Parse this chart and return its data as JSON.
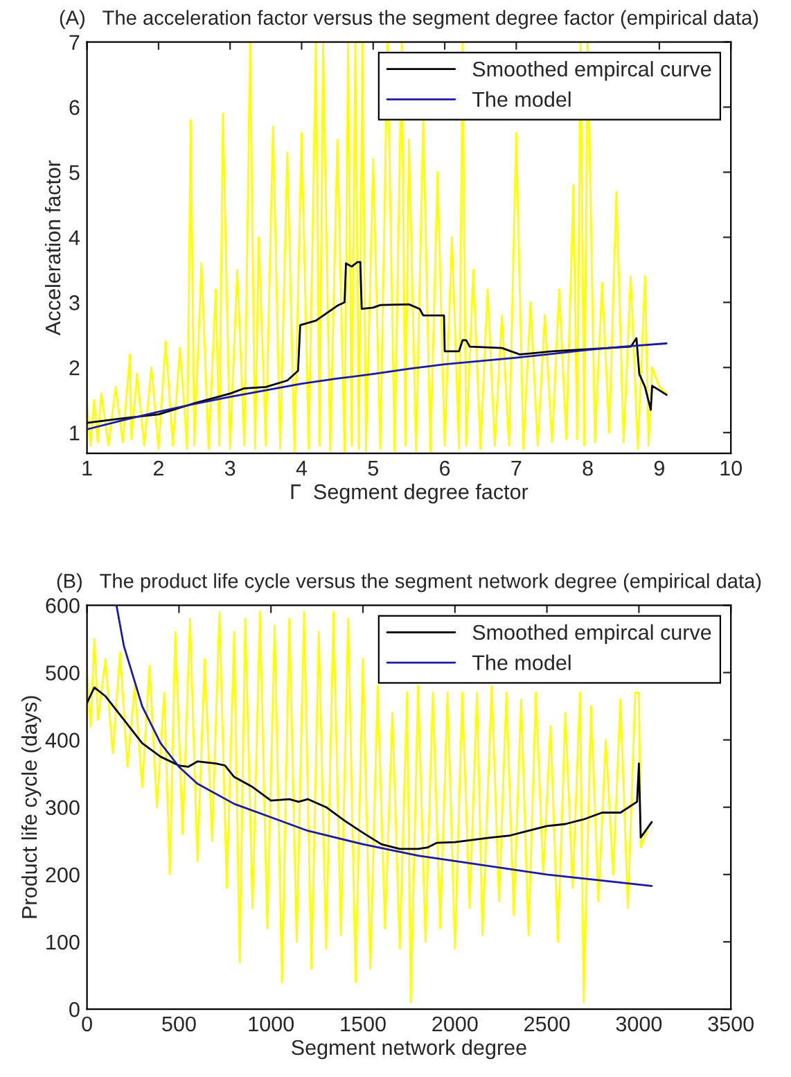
{
  "chart_data": [
    {
      "type": "line",
      "title": "(A)   The acceleration factor versus the segment degree factor (empirical data)",
      "xlabel": "Γ  Segment degree factor",
      "ylabel": "Acceleration factor",
      "xlim": [
        1,
        10
      ],
      "ylim": [
        0.68,
        7
      ],
      "xticks": [
        1,
        2,
        3,
        4,
        5,
        6,
        7,
        8,
        9,
        10
      ],
      "yticks": [
        1,
        2,
        3,
        4,
        5,
        6,
        7
      ],
      "legend": "top right",
      "grid": false,
      "series": [
        {
          "color": "#ffff00",
          "x": [
            1.0,
            1.05,
            1.1,
            1.15,
            1.2,
            1.3,
            1.4,
            1.5,
            1.6,
            1.62,
            1.7,
            1.8,
            1.9,
            2.0,
            2.1,
            2.2,
            2.3,
            2.4,
            2.45,
            2.5,
            2.6,
            2.7,
            2.8,
            2.85,
            2.9,
            3.0,
            3.1,
            3.2,
            3.28,
            3.35,
            3.4,
            3.5,
            3.6,
            3.7,
            3.8,
            3.9,
            4.0,
            4.1,
            4.2,
            4.25,
            4.3,
            4.4,
            4.5,
            4.6,
            4.65,
            4.7,
            4.75,
            4.8,
            4.85,
            4.9,
            5.0,
            5.1,
            5.2,
            5.3,
            5.4,
            5.45,
            5.5,
            5.6,
            5.7,
            5.8,
            5.9,
            6.0,
            6.1,
            6.2,
            6.25,
            6.3,
            6.4,
            6.5,
            6.6,
            6.7,
            6.8,
            6.9,
            7.0,
            7.1,
            7.2,
            7.3,
            7.4,
            7.5,
            7.6,
            7.7,
            7.8,
            7.85,
            7.9,
            7.95,
            8.0,
            8.1,
            8.2,
            8.3,
            8.4,
            8.5,
            8.6,
            8.7,
            8.8,
            8.85,
            8.9,
            9.0,
            9.1
          ],
          "values": [
            1.45,
            0.8,
            1.5,
            0.85,
            1.6,
            0.8,
            1.7,
            0.85,
            2.2,
            0.9,
            1.9,
            0.8,
            2.0,
            0.75,
            2.4,
            0.8,
            2.3,
            0.75,
            5.8,
            0.8,
            3.6,
            0.75,
            3.2,
            0.8,
            5.9,
            0.75,
            3.5,
            0.8,
            7.0,
            0.75,
            4.0,
            0.8,
            5.7,
            0.75,
            5.3,
            0.7,
            5.6,
            0.75,
            7.0,
            0.8,
            7.0,
            0.7,
            5.5,
            0.7,
            7.0,
            0.8,
            7.0,
            0.75,
            7.0,
            0.7,
            5.2,
            0.75,
            7.0,
            0.7,
            7.0,
            0.8,
            5.5,
            0.7,
            5.8,
            0.7,
            5.0,
            0.8,
            4.0,
            0.75,
            7.0,
            0.8,
            3.5,
            0.75,
            3.2,
            0.8,
            2.8,
            0.8,
            5.6,
            0.75,
            3.0,
            0.8,
            2.8,
            0.85,
            3.2,
            0.9,
            4.8,
            0.9,
            7.0,
            0.8,
            7.0,
            0.85,
            3.3,
            1.0,
            4.7,
            0.85,
            3.4,
            0.75,
            3.4,
            0.8,
            2.0,
            1.7,
            1.6
          ]
        },
        {
          "name": "Smoothed empircal curve",
          "color": "#000000",
          "x": [
            1,
            1.5,
            2,
            2.5,
            3,
            3.2,
            3.5,
            3.8,
            3.95,
            3.98,
            4.2,
            4.5,
            4.6,
            4.62,
            4.7,
            4.78,
            4.82,
            4.84,
            5.0,
            5.1,
            5.5,
            5.65,
            5.7,
            5.99,
            6.0,
            6.2,
            6.25,
            6.3,
            6.35,
            6.8,
            7.05,
            7.5,
            8,
            8.6,
            8.68,
            8.72,
            8.8,
            8.88,
            8.9,
            9.1
          ],
          "values": [
            1.15,
            1.22,
            1.28,
            1.45,
            1.6,
            1.68,
            1.7,
            1.8,
            1.95,
            2.65,
            2.72,
            2.95,
            3.0,
            3.6,
            3.55,
            3.62,
            3.62,
            2.9,
            2.92,
            2.96,
            2.97,
            2.9,
            2.8,
            2.8,
            2.25,
            2.25,
            2.42,
            2.42,
            2.32,
            2.3,
            2.2,
            2.25,
            2.28,
            2.32,
            2.45,
            1.9,
            1.7,
            1.35,
            1.72,
            1.58
          ]
        },
        {
          "name": "The model",
          "color": "#1a1aa6",
          "x": [
            1,
            1.5,
            2,
            2.5,
            3,
            3.5,
            4,
            4.5,
            5,
            5.5,
            6,
            6.5,
            7,
            7.5,
            8,
            8.5,
            9.1
          ],
          "values": [
            1.05,
            1.19,
            1.32,
            1.44,
            1.55,
            1.65,
            1.75,
            1.83,
            1.9,
            1.98,
            2.05,
            2.1,
            2.15,
            2.21,
            2.27,
            2.32,
            2.37
          ]
        }
      ]
    },
    {
      "type": "line",
      "title": "(B)   The product life cycle versus the segment network degree (empirical data)",
      "xlabel": "Segment network degree",
      "ylabel": "Product life cycle (days)",
      "xlim": [
        0,
        3500
      ],
      "ylim": [
        0,
        600
      ],
      "xticks": [
        0,
        500,
        1000,
        1500,
        2000,
        2500,
        3000,
        3500
      ],
      "yticks": [
        0,
        100,
        200,
        300,
        400,
        500,
        600
      ],
      "legend": "top right",
      "grid": false,
      "series": [
        {
          "color": "#ffff00",
          "x": [
            0,
            20,
            40,
            60,
            100,
            140,
            180,
            220,
            260,
            300,
            340,
            380,
            420,
            450,
            480,
            520,
            560,
            600,
            640,
            680,
            720,
            760,
            800,
            830,
            860,
            900,
            940,
            980,
            1020,
            1060,
            1100,
            1140,
            1180,
            1220,
            1260,
            1300,
            1340,
            1380,
            1420,
            1460,
            1500,
            1540,
            1580,
            1620,
            1660,
            1700,
            1740,
            1760,
            1800,
            1840,
            1880,
            1920,
            1960,
            2000,
            2040,
            2080,
            2120,
            2150,
            2200,
            2240,
            2280,
            2320,
            2360,
            2400,
            2440,
            2480,
            2520,
            2560,
            2600,
            2640,
            2680,
            2700,
            2740,
            2780,
            2820,
            2860,
            2900,
            2940,
            2980,
            3000,
            3010,
            3050
          ],
          "values": [
            500,
            420,
            550,
            430,
            520,
            380,
            530,
            360,
            480,
            330,
            510,
            300,
            470,
            200,
            560,
            260,
            580,
            220,
            520,
            250,
            590,
            180,
            560,
            70,
            580,
            150,
            590,
            120,
            570,
            40,
            580,
            100,
            590,
            60,
            560,
            90,
            590,
            110,
            580,
            40,
            520,
            60,
            480,
            120,
            440,
            90,
            470,
            10,
            480,
            100,
            470,
            120,
            470,
            90,
            470,
            150,
            470,
            110,
            480,
            160,
            470,
            140,
            460,
            110,
            470,
            200,
            420,
            100,
            440,
            180,
            470,
            10,
            450,
            160,
            400,
            200,
            460,
            150,
            470,
            470,
            240,
            270
          ]
        },
        {
          "name": "Smoothed empircal curve",
          "color": "#000000",
          "x": [
            0,
            40,
            100,
            200,
            300,
            400,
            500,
            550,
            600,
            700,
            750,
            800,
            900,
            1000,
            1100,
            1150,
            1200,
            1300,
            1400,
            1500,
            1600,
            1700,
            1800,
            1850,
            1900,
            2000,
            2200,
            2300,
            2400,
            2500,
            2600,
            2700,
            2800,
            2900,
            2990,
            3000,
            3010,
            3070
          ],
          "values": [
            455,
            478,
            465,
            430,
            395,
            375,
            362,
            360,
            368,
            365,
            362,
            345,
            330,
            310,
            312,
            308,
            312,
            300,
            280,
            262,
            245,
            238,
            238,
            240,
            247,
            248,
            255,
            258,
            265,
            272,
            275,
            282,
            292,
            292,
            308,
            365,
            255,
            278
          ]
        },
        {
          "name": "The model",
          "color": "#1a1aa6",
          "x": [
            160,
            200,
            300,
            400,
            500,
            600,
            800,
            1000,
            1200,
            1500,
            1800,
            2000,
            2500,
            3070
          ],
          "values": [
            600,
            540,
            450,
            395,
            360,
            335,
            305,
            285,
            265,
            245,
            228,
            220,
            200,
            183
          ]
        }
      ]
    }
  ]
}
